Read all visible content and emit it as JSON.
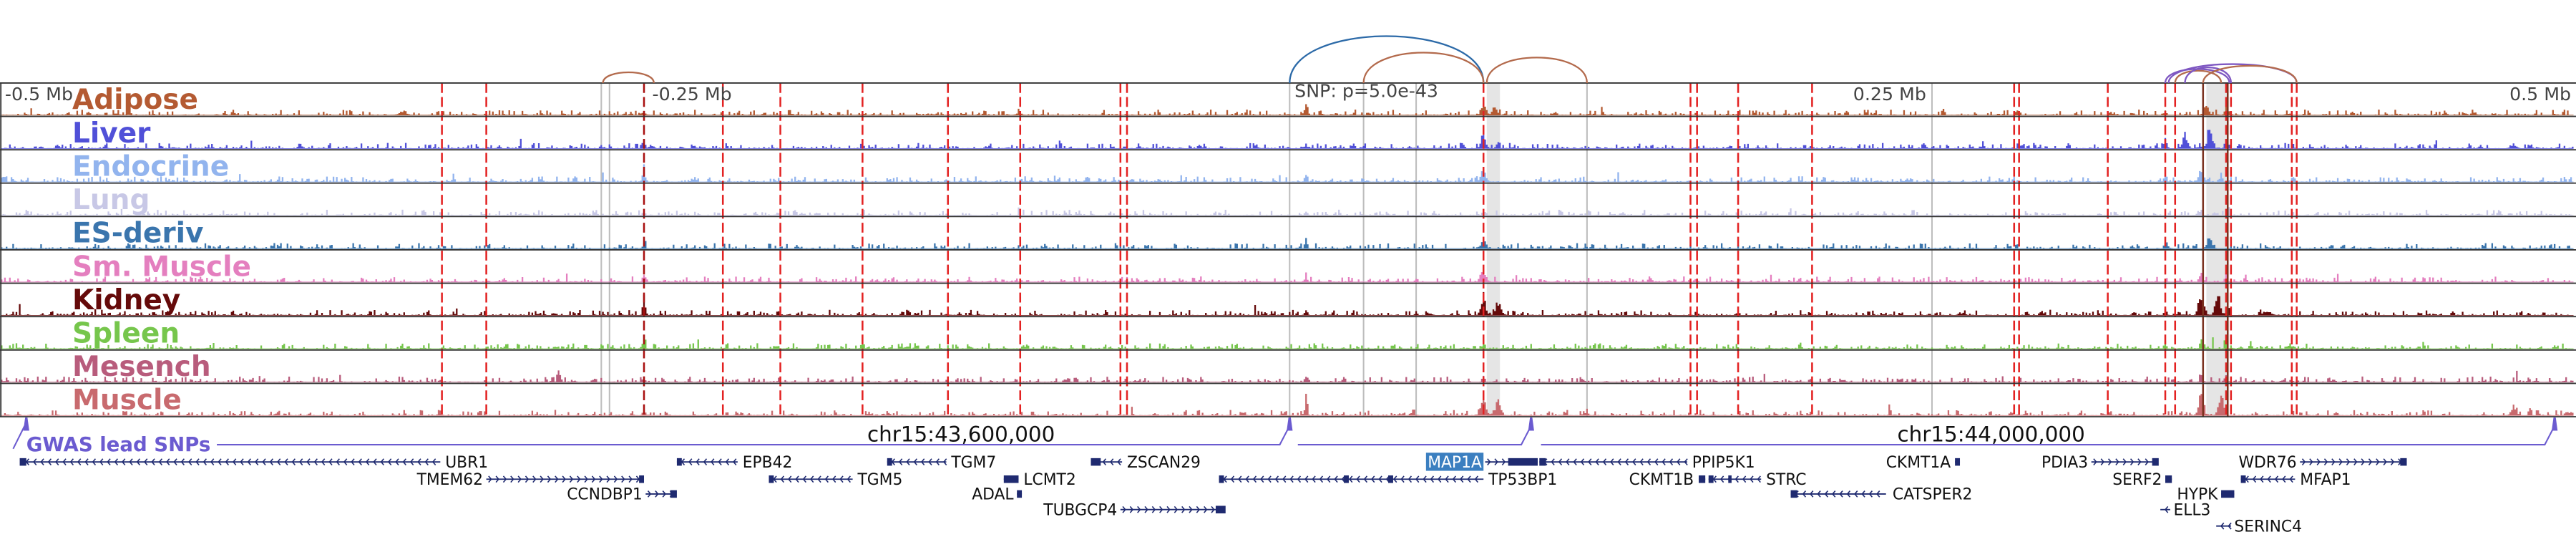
{
  "tracks": [
    {
      "label": "Adipose",
      "color": "#b45a32"
    },
    {
      "label": "Liver",
      "color": "#5050d8"
    },
    {
      "label": "Endocrine",
      "color": "#92b4ee"
    },
    {
      "label": "Lung",
      "color": "#c8c8e6"
    },
    {
      "label": "ES-deriv",
      "color": "#3a75ad"
    },
    {
      "label": "Sm. Muscle",
      "color": "#e47fbf"
    },
    {
      "label": "Kidney",
      "color": "#650a0a"
    },
    {
      "label": "Spleen",
      "color": "#76c64c"
    },
    {
      "label": "Mesench",
      "color": "#b85c7c"
    },
    {
      "label": "Muscle",
      "color": "#c86a6e"
    }
  ],
  "axis": {
    "left": "-0.5 Mb",
    "left_mid": "-0.25 Mb",
    "snp": "SNP: p=5.0e-43",
    "right_mid": "0.25 Mb",
    "right": "0.5 Mb"
  },
  "coords": {
    "c1": "chr15:43,600,000",
    "c2": "chr15:44,000,000"
  },
  "gwas": {
    "label": "GWAS lead SNPs",
    "color": "#6b5bd0"
  },
  "genes": [
    "UBR1",
    "EPB42",
    "TGM7",
    "ZSCAN29",
    "MAP1A",
    "TP53BP1",
    "PPIP5K1",
    "CKMT1A",
    "PDIA3",
    "WDR76",
    "TMEM62",
    "TGM5",
    "LCMT2",
    "CKMT1B",
    "STRC",
    "SERF2",
    "MFAP1",
    "CCNDBP1",
    "ADAL",
    "CATSPER2",
    "HYPK",
    "TUBGCP4",
    "ELL3",
    "SERINC4"
  ],
  "colors": {
    "snp_line": "#e32222",
    "snp_line_dark": "#a81010",
    "ld_line": "#bdbdbd",
    "ld_band": "#cfcfcf",
    "dark_line": "#7b3220",
    "border": "#333333",
    "gene": "#1f2a70",
    "highlight_bg": "#3b7fc0",
    "highlight_text": "#ffffff",
    "arc_brown": "#b36a4c",
    "arc_blue": "#2c6aa8",
    "arc_purple": "#7e57c2"
  }
}
